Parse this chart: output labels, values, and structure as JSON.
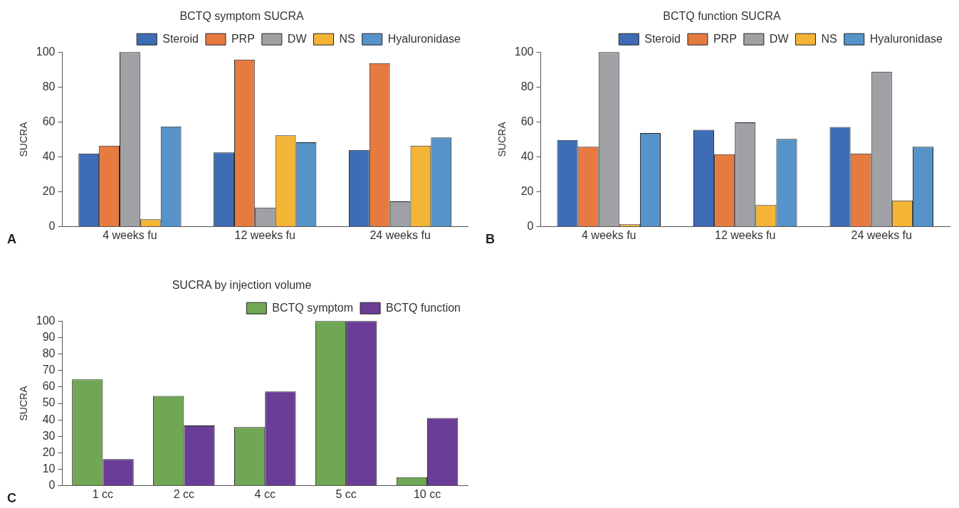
{
  "chart_data": [
    {
      "type": "bar",
      "title": "BCTQ symptom SUCRA",
      "ylabel": "SUCRA",
      "annotations": [
        "A"
      ],
      "categories": [
        "4 weeks fu",
        "12 weeks fu",
        "24 weeks fu"
      ],
      "ylim": [
        0,
        100
      ],
      "yticks": [
        0,
        20,
        40,
        60,
        80,
        100
      ],
      "grid": false,
      "legend": "top right",
      "series": [
        {
          "name": "Steroid",
          "color": "#3e6db5",
          "values": [
            42,
            42.6,
            44
          ]
        },
        {
          "name": "PRP",
          "color": "#e67a40",
          "values": [
            46.4,
            95.7,
            93.7
          ]
        },
        {
          "name": "DW",
          "color": "#a0a1a5",
          "values": [
            100,
            11,
            14.6
          ]
        },
        {
          "name": "NS",
          "color": "#f4b436",
          "values": [
            4.3,
            52.3,
            46.4
          ]
        },
        {
          "name": "Hyaluronidase",
          "color": "#5593c8",
          "values": [
            57.4,
            48.4,
            51.1
          ]
        }
      ]
    },
    {
      "type": "bar",
      "title": "BCTQ function SUCRA",
      "ylabel": "SUCRA",
      "annotations": [
        "B"
      ],
      "categories": [
        "4 weeks fu",
        "12 weeks fu",
        "24 weeks fu"
      ],
      "ylim": [
        0,
        100
      ],
      "yticks": [
        0,
        20,
        40,
        60,
        80,
        100
      ],
      "grid": false,
      "legend": "top right",
      "series": [
        {
          "name": "Steroid",
          "color": "#3e6db5",
          "values": [
            49.7,
            55.5,
            57.1
          ]
        },
        {
          "name": "PRP",
          "color": "#e67a40",
          "values": [
            45.8,
            41.6,
            42
          ]
        },
        {
          "name": "DW",
          "color": "#a0a1a5",
          "values": [
            100,
            59.8,
            88.8
          ]
        },
        {
          "name": "NS",
          "color": "#f4b436",
          "values": [
            1.4,
            12.4,
            15.1
          ]
        },
        {
          "name": "Hyaluronidase",
          "color": "#5593c8",
          "values": [
            53.7,
            50.3,
            45.8
          ]
        }
      ]
    },
    {
      "type": "bar",
      "title": "SUCRA by injection volume",
      "ylabel": "SUCRA",
      "annotations": [
        "C"
      ],
      "categories": [
        "1 cc",
        "2 cc",
        "4 cc",
        "5 cc",
        "10 cc"
      ],
      "ylim": [
        0,
        100
      ],
      "yticks": [
        0,
        10,
        20,
        30,
        40,
        50,
        60,
        70,
        80,
        90,
        100
      ],
      "grid": false,
      "legend": "top right",
      "series": [
        {
          "name": "BCTQ symptom",
          "color": "#70a754",
          "values": [
            64.6,
            54.5,
            35.6,
            100,
            5.2
          ]
        },
        {
          "name": "BCTQ function",
          "color": "#6a3d96",
          "values": [
            16.2,
            36.6,
            57.2,
            100,
            41.2
          ]
        }
      ]
    }
  ]
}
